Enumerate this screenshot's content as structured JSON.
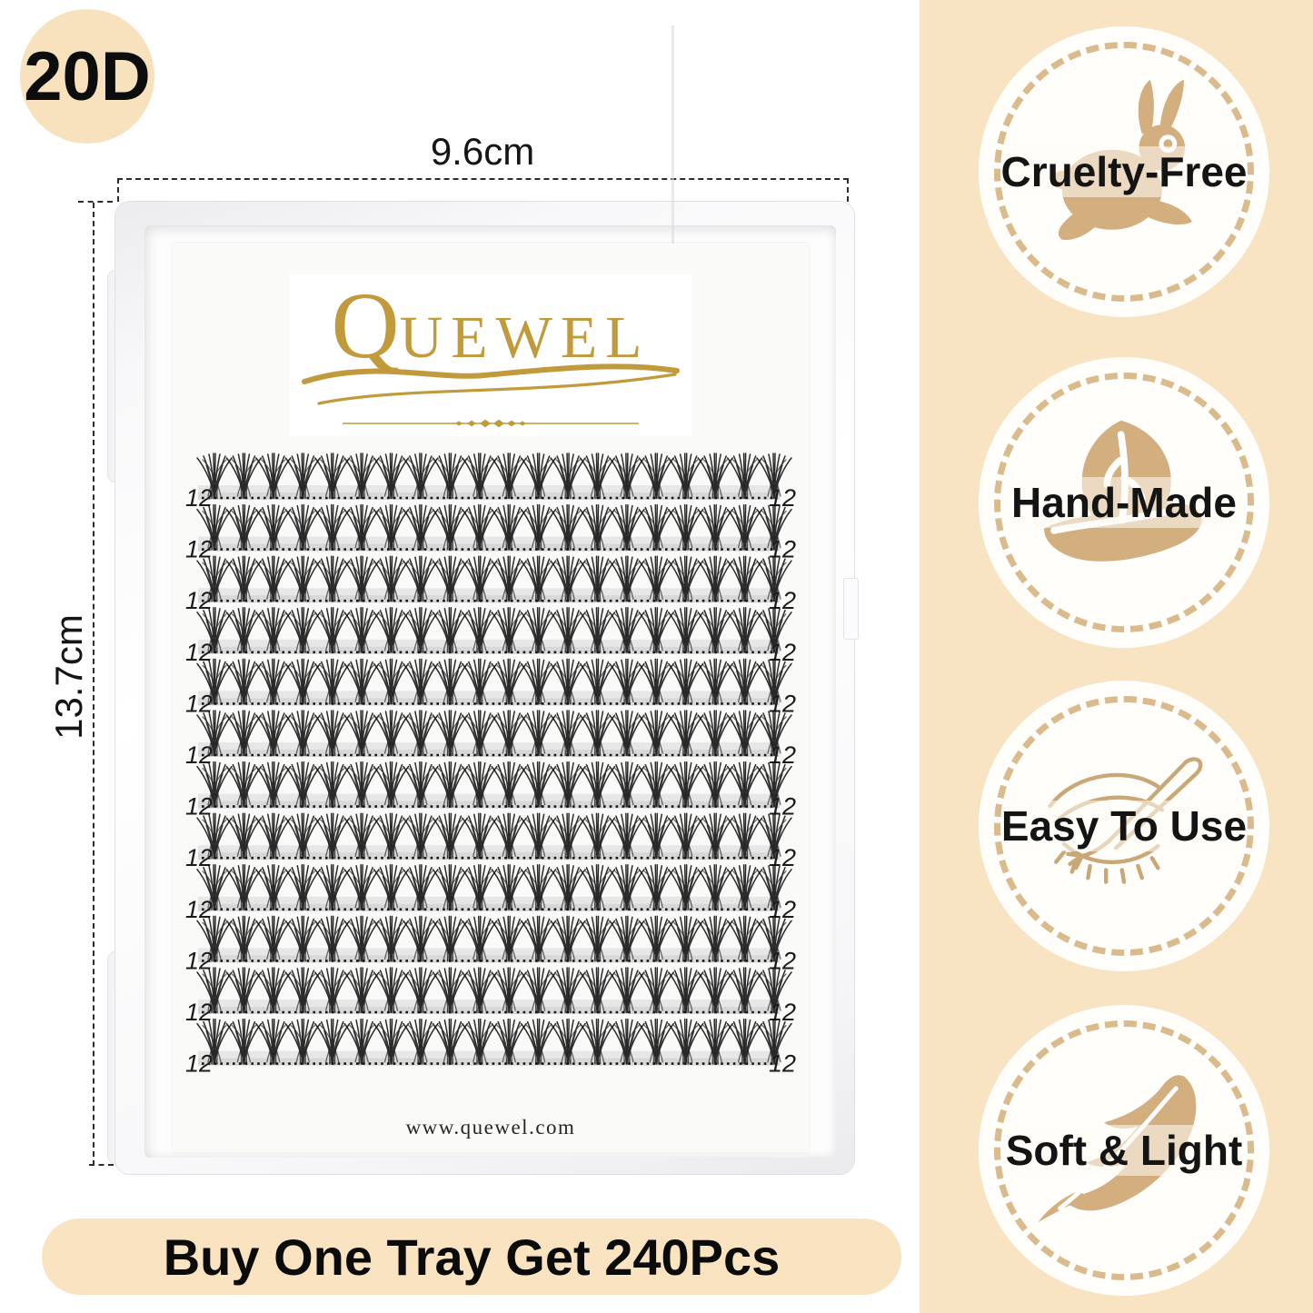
{
  "density_badge": "20D",
  "dimensions": {
    "width_label": "9.6cm",
    "height_label": "13.7cm"
  },
  "tray": {
    "brand_q": "Q",
    "brand_rest": "UEWEL",
    "website": "www.quewel.com",
    "clusters_per_row": 20,
    "rows": [
      {
        "left": "12",
        "right": "12"
      },
      {
        "left": "12",
        "right": "12"
      },
      {
        "left": "12",
        "right": "12"
      },
      {
        "left": "12",
        "right": "12"
      },
      {
        "left": "12",
        "right": "12"
      },
      {
        "left": "12",
        "right": "12"
      },
      {
        "left": "12",
        "right": "12"
      },
      {
        "left": "12",
        "right": "12"
      },
      {
        "left": "12",
        "right": "12"
      },
      {
        "left": "12",
        "right": "12"
      },
      {
        "left": "12",
        "right": "12"
      },
      {
        "left": "12",
        "right": "12"
      }
    ]
  },
  "banner": {
    "text": "Buy One Tray Get 240Pcs"
  },
  "features": [
    {
      "label": "Cruelty-Free",
      "icon": "rabbit-icon"
    },
    {
      "label": "Hand-Made",
      "icon": "hand-leaf-icon"
    },
    {
      "label": "Easy To Use",
      "icon": "eye-tweezers-icon"
    },
    {
      "label": "Soft & Light",
      "icon": "feather-icon"
    }
  ],
  "colors": {
    "cream_panel": "#F8E3C2",
    "badge_bubble": "#F8E2BE",
    "banner_bg": "#FAE3C1",
    "icon_tan": "#D3AF80",
    "ring_dash": "#DABB8E",
    "logo_gold": "#C19A3B"
  }
}
